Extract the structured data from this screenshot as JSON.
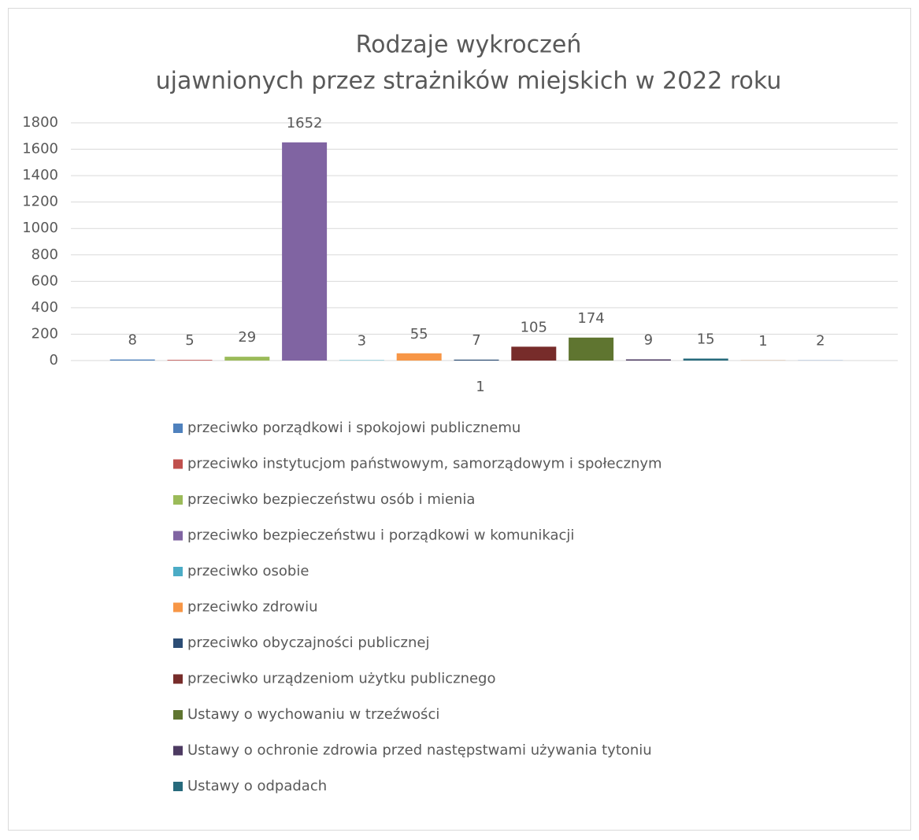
{
  "chart_data": {
    "type": "bar",
    "title": [
      "Rodzaje wykroczeń",
      "ujawnionych przez strażników miejskich w 2022 roku"
    ],
    "categories": [
      "1"
    ],
    "series": [
      {
        "name": "przeciwko porządkowi i spokojowi publicznemu",
        "color": "#4F81BD",
        "values": [
          8
        ]
      },
      {
        "name": "przeciwko instytucjom państwowym, samorządowym i społecznym",
        "color": "#C0504D",
        "values": [
          5
        ]
      },
      {
        "name": "przeciwko bezpieczeństwu osób i mienia",
        "color": "#9BBB59",
        "values": [
          29
        ]
      },
      {
        "name": "przeciwko bezpieczeństwu i porządkowi w komunikacji",
        "color": "#8064A2",
        "values": [
          1652
        ]
      },
      {
        "name": "przeciwko osobie",
        "color": "#4BACC6",
        "values": [
          3
        ]
      },
      {
        "name": "przeciwko zdrowiu",
        "color": "#F79646",
        "values": [
          55
        ]
      },
      {
        "name": "przeciwko obyczajności publicznej",
        "color": "#2C4D75",
        "values": [
          7
        ]
      },
      {
        "name": "przeciwko urządzeniom użytku publicznego",
        "color": "#772C2A",
        "values": [
          105
        ]
      },
      {
        "name": "Ustawy o wychowaniu w trzeźwości",
        "color": "#5F7530",
        "values": [
          174
        ]
      },
      {
        "name": "Ustawy o ochronie zdrowia przed następstwami używania tytoniu",
        "color": "#4D3B62",
        "values": [
          9
        ]
      },
      {
        "name": "Ustawy o odpadach",
        "color": "#276A7C",
        "values": [
          15
        ]
      },
      {
        "name": null,
        "color": "#B65708",
        "values": [
          1
        ]
      },
      {
        "name": null,
        "color": "#729ACA",
        "values": [
          2
        ]
      }
    ],
    "ylim": [
      0,
      1800
    ],
    "yticks": [
      0,
      200,
      400,
      600,
      800,
      1000,
      1200,
      1400,
      1600,
      1800
    ],
    "grid": true
  }
}
